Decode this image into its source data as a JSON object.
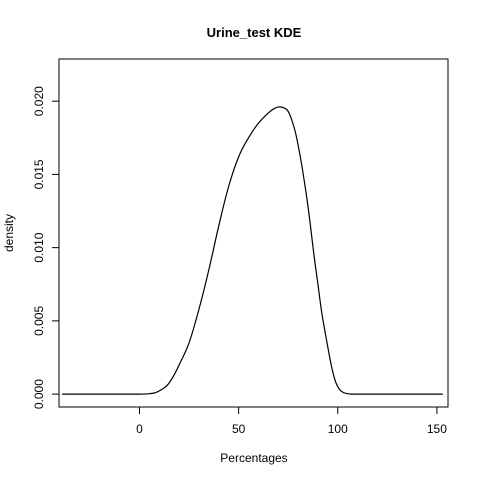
{
  "chart_data": {
    "type": "line",
    "title": "Urine_test  KDE",
    "xlabel": "Percentages",
    "ylabel": "density",
    "xlim": [
      -40.6,
      155.6
    ],
    "ylim": [
      -0.00088,
      0.02288
    ],
    "xticks": [
      0,
      50,
      100,
      150
    ],
    "xtick_labels": [
      "0",
      "50",
      "100",
      "150"
    ],
    "yticks": [
      0.0,
      0.005,
      0.01,
      0.015,
      0.02
    ],
    "ytick_labels": [
      "0.000",
      "0.005",
      "0.010",
      "0.015",
      "0.020"
    ],
    "grid": false,
    "box": true,
    "series": [
      {
        "color": "#000000",
        "x": [
          -39,
          -20,
          0,
          5,
          8,
          11,
          14,
          17,
          20,
          25,
          30,
          35,
          40,
          45,
          50,
          55,
          60,
          65,
          68,
          70,
          72,
          75,
          78,
          80,
          82,
          85,
          88,
          90,
          92,
          95,
          97,
          99,
          101,
          103,
          105,
          107,
          110,
          120,
          140,
          153
        ],
        "y": [
          0.0,
          0.0,
          0.0,
          3e-05,
          0.0001,
          0.0003,
          0.0006,
          0.0012,
          0.002,
          0.0035,
          0.0058,
          0.0085,
          0.0115,
          0.0142,
          0.0162,
          0.0175,
          0.0185,
          0.0192,
          0.0195,
          0.0196,
          0.01958,
          0.0193,
          0.0182,
          0.017,
          0.0155,
          0.0128,
          0.0095,
          0.0075,
          0.0055,
          0.0032,
          0.0018,
          0.0008,
          0.0003,
          0.0001,
          3e-05,
          0.0,
          0.0,
          0.0,
          0.0,
          0.0
        ]
      }
    ]
  }
}
